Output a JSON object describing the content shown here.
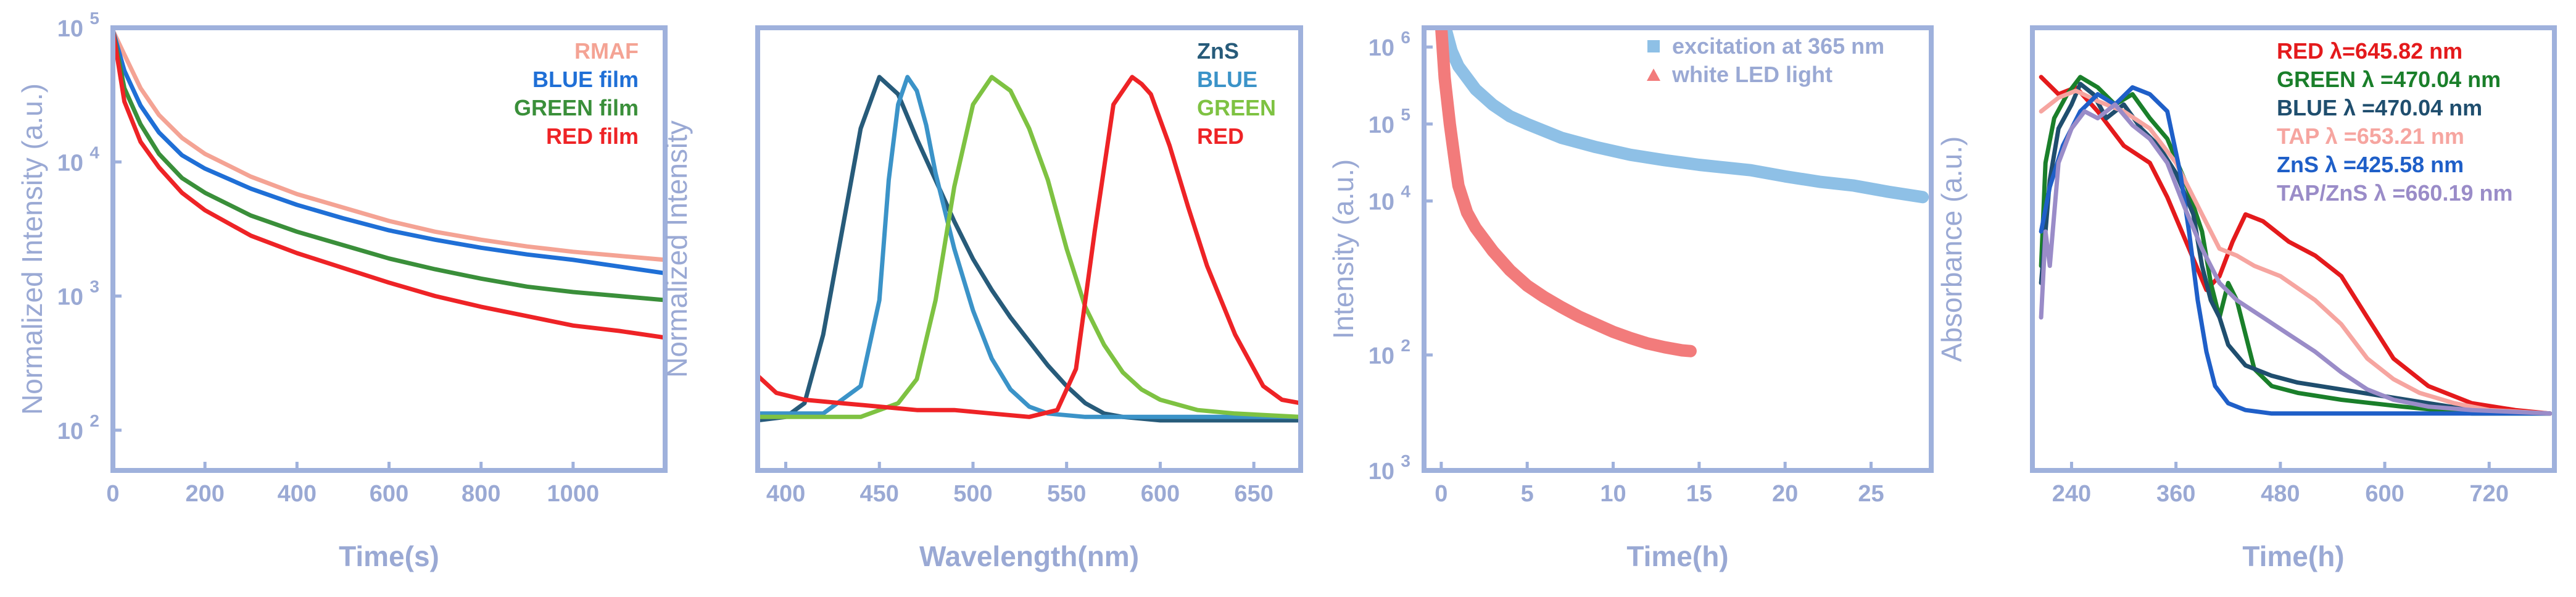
{
  "chart_data": [
    {
      "type": "line",
      "title": "",
      "xlabel": "Time(s)",
      "ylabel": "Normalized Intensity (a.u.)",
      "xlim": [
        0,
        1200
      ],
      "ylim_log10": [
        1.7,
        5.0
      ],
      "yscale": "log",
      "xticks": [
        0,
        200,
        400,
        600,
        800,
        1000
      ],
      "yticks": [
        {
          "value": 2,
          "base": "10",
          "exp": "2"
        },
        {
          "value": 3,
          "base": "10",
          "exp": "3"
        },
        {
          "value": 4,
          "base": "10",
          "exp": "4"
        },
        {
          "value": 5,
          "base": "10",
          "exp": "5"
        }
      ],
      "legend_position": "top-right",
      "series": [
        {
          "name": "RMAF",
          "color": "#f4a394",
          "x": [
            0,
            25,
            60,
            100,
            150,
            200,
            300,
            400,
            500,
            600,
            700,
            800,
            900,
            1000,
            1100,
            1200
          ],
          "y_log10": [
            4.98,
            4.8,
            4.55,
            4.35,
            4.18,
            4.06,
            3.89,
            3.76,
            3.66,
            3.56,
            3.48,
            3.42,
            3.37,
            3.33,
            3.3,
            3.27
          ]
        },
        {
          "name": "BLUE film",
          "color": "#1f6fd6",
          "x": [
            0,
            25,
            60,
            100,
            150,
            200,
            300,
            400,
            500,
            600,
            700,
            800,
            900,
            1000,
            1100,
            1200
          ],
          "y_log10": [
            4.98,
            4.68,
            4.42,
            4.22,
            4.05,
            3.95,
            3.8,
            3.68,
            3.58,
            3.49,
            3.42,
            3.36,
            3.31,
            3.27,
            3.22,
            3.17
          ]
        },
        {
          "name": "GREEN film",
          "color": "#3a8f3a",
          "x": [
            0,
            25,
            60,
            100,
            150,
            200,
            300,
            400,
            500,
            600,
            700,
            800,
            900,
            1000,
            1100,
            1200
          ],
          "y_log10": [
            4.98,
            4.55,
            4.28,
            4.06,
            3.88,
            3.77,
            3.6,
            3.48,
            3.38,
            3.28,
            3.2,
            3.13,
            3.07,
            3.03,
            3.0,
            2.97
          ]
        },
        {
          "name": "RED film",
          "color": "#ee2326",
          "x": [
            0,
            25,
            60,
            100,
            150,
            200,
            300,
            400,
            500,
            600,
            700,
            800,
            900,
            1000,
            1100,
            1200
          ],
          "y_log10": [
            4.98,
            4.45,
            4.15,
            3.96,
            3.77,
            3.64,
            3.45,
            3.32,
            3.21,
            3.1,
            3.0,
            2.92,
            2.85,
            2.78,
            2.74,
            2.69
          ]
        }
      ]
    },
    {
      "type": "line",
      "title": "",
      "xlabel": "Wavelength(nm)",
      "ylabel": "Normalized Intensity",
      "xlim": [
        385,
        675
      ],
      "ylim": [
        -0.02,
        1.05
      ],
      "xticks": [
        400,
        450,
        500,
        550,
        600,
        650
      ],
      "legend_position": "top-right",
      "series": [
        {
          "name": "ZnS",
          "color": "#275b7a",
          "x": [
            385,
            400,
            410,
            420,
            430,
            440,
            450,
            460,
            470,
            480,
            490,
            500,
            510,
            520,
            530,
            540,
            550,
            560,
            570,
            580,
            600,
            640,
            675
          ],
          "y": [
            0.0,
            0.01,
            0.05,
            0.25,
            0.55,
            0.85,
            1.0,
            0.95,
            0.82,
            0.7,
            0.58,
            0.47,
            0.38,
            0.3,
            0.23,
            0.16,
            0.1,
            0.05,
            0.02,
            0.01,
            0.0,
            0.0,
            0.0
          ]
        },
        {
          "name": "BLUE",
          "color": "#3b93c8",
          "x": [
            385,
            420,
            440,
            450,
            455,
            460,
            465,
            470,
            475,
            480,
            490,
            500,
            510,
            520,
            530,
            540,
            560,
            580,
            620,
            675
          ],
          "y": [
            0.02,
            0.02,
            0.1,
            0.35,
            0.7,
            0.92,
            1.0,
            0.96,
            0.86,
            0.72,
            0.5,
            0.32,
            0.18,
            0.09,
            0.04,
            0.02,
            0.01,
            0.01,
            0.01,
            0.01
          ]
        },
        {
          "name": "GREEN",
          "color": "#7ec242",
          "x": [
            385,
            440,
            460,
            470,
            480,
            490,
            500,
            510,
            520,
            530,
            540,
            550,
            560,
            570,
            580,
            590,
            600,
            620,
            640,
            675
          ],
          "y": [
            0.01,
            0.01,
            0.05,
            0.12,
            0.35,
            0.68,
            0.92,
            1.0,
            0.96,
            0.85,
            0.7,
            0.5,
            0.33,
            0.22,
            0.14,
            0.09,
            0.06,
            0.03,
            0.02,
            0.01
          ]
        },
        {
          "name": "RED",
          "color": "#ee2326",
          "x": [
            385,
            395,
            410,
            430,
            450,
            470,
            490,
            510,
            530,
            545,
            555,
            565,
            575,
            585,
            590,
            595,
            605,
            615,
            625,
            640,
            655,
            665,
            675
          ],
          "y": [
            0.13,
            0.08,
            0.06,
            0.05,
            0.04,
            0.03,
            0.03,
            0.02,
            0.01,
            0.03,
            0.15,
            0.55,
            0.92,
            1.0,
            0.98,
            0.95,
            0.8,
            0.62,
            0.45,
            0.25,
            0.1,
            0.06,
            0.05
          ]
        }
      ]
    },
    {
      "type": "line",
      "title": "",
      "xlabel": "Time(h)",
      "ylabel": "Intensity (a.u.)",
      "xlim": [
        -1,
        28.5
      ],
      "ylim_log10": [
        0.5,
        6.25
      ],
      "yscale": "log",
      "xticks": [
        0,
        5,
        10,
        15,
        20,
        25
      ],
      "yticks": [
        {
          "value": 2,
          "base": "10",
          "exp": "2"
        },
        {
          "value": 4,
          "base": "10",
          "exp": "4"
        },
        {
          "value": 5,
          "base": "10",
          "exp": "5"
        },
        {
          "value": 6,
          "base": "10",
          "exp": "6"
        },
        {
          "value": 0.5,
          "base": "10",
          "exp": "3"
        }
      ],
      "legend_position": "top-right",
      "series": [
        {
          "name": "excitation at 365 nm",
          "marker": "square",
          "color": "#8ec0e6",
          "x": [
            0.3,
            0.6,
            1.0,
            2.0,
            3.0,
            4.0,
            5.0,
            7.0,
            9.0,
            11.0,
            13.0,
            15.0,
            18.0,
            20.0,
            22.0,
            24.0,
            26.0,
            28.0
          ],
          "y_log10": [
            6.2,
            5.95,
            5.75,
            5.45,
            5.25,
            5.1,
            5.0,
            4.82,
            4.7,
            4.6,
            4.53,
            4.47,
            4.4,
            4.32,
            4.25,
            4.2,
            4.12,
            4.05
          ]
        },
        {
          "name": "white LED light",
          "marker": "triangle",
          "color": "#f27b7b",
          "x": [
            0.0,
            0.2,
            0.5,
            0.8,
            1.0,
            1.5,
            2.0,
            3.0,
            4.0,
            5.0,
            6.0,
            7.0,
            8.0,
            9.0,
            10.0,
            11.0,
            12.0,
            13.0,
            14.0,
            14.5
          ],
          "y_log10": [
            6.25,
            5.6,
            5.0,
            4.5,
            4.2,
            3.85,
            3.65,
            3.35,
            3.1,
            2.9,
            2.75,
            2.62,
            2.5,
            2.4,
            2.3,
            2.22,
            2.15,
            2.1,
            2.06,
            2.05
          ]
        }
      ]
    },
    {
      "type": "line",
      "title": "",
      "xlabel": "Time(h)",
      "ylabel": "Absorbance (a.u.)",
      "xlim": [
        195,
        795
      ],
      "ylim": [
        -0.02,
        1.05
      ],
      "xticks": [
        240,
        360,
        480,
        600,
        720
      ],
      "legend_position": "top-right",
      "series": [
        {
          "name": "RED λ=645.82 nm",
          "color": "#e41a1c",
          "x": [
            205,
            225,
            245,
            270,
            300,
            330,
            350,
            375,
            395,
            410,
            425,
            440,
            460,
            490,
            520,
            550,
            580,
            610,
            650,
            700,
            750,
            790
          ],
          "y": [
            1.0,
            0.95,
            0.97,
            0.9,
            0.8,
            0.75,
            0.65,
            0.5,
            0.38,
            0.42,
            0.52,
            0.6,
            0.58,
            0.52,
            0.48,
            0.42,
            0.3,
            0.18,
            0.1,
            0.05,
            0.03,
            0.02
          ]
        },
        {
          "name": "GREEN λ =470.04 nm",
          "color": "#1a7f2a",
          "x": [
            205,
            210,
            220,
            235,
            250,
            270,
            290,
            310,
            330,
            350,
            370,
            390,
            400,
            410,
            420,
            430,
            440,
            450,
            470,
            500,
            550,
            620,
            700,
            790
          ],
          "y": [
            0.45,
            0.75,
            0.88,
            0.95,
            1.0,
            0.97,
            0.92,
            0.95,
            0.88,
            0.82,
            0.7,
            0.55,
            0.4,
            0.3,
            0.4,
            0.35,
            0.25,
            0.15,
            0.1,
            0.08,
            0.06,
            0.04,
            0.02,
            0.02
          ]
        },
        {
          "name": "BLUE λ =470.04 nm",
          "color": "#1f4e6e",
          "x": [
            205,
            215,
            225,
            240,
            250,
            265,
            280,
            300,
            320,
            340,
            360,
            380,
            390,
            400,
            410,
            420,
            440,
            470,
            500,
            550,
            600,
            650,
            700,
            790
          ],
          "y": [
            0.4,
            0.7,
            0.85,
            0.92,
            0.98,
            0.95,
            0.88,
            0.92,
            0.85,
            0.8,
            0.72,
            0.6,
            0.45,
            0.35,
            0.3,
            0.22,
            0.16,
            0.13,
            0.11,
            0.09,
            0.07,
            0.05,
            0.03,
            0.02
          ]
        },
        {
          "name": "TAP λ =653.21 nm",
          "color": "#f6a5a0",
          "x": [
            205,
            225,
            245,
            270,
            300,
            330,
            360,
            390,
            410,
            430,
            450,
            480,
            520,
            550,
            580,
            610,
            640,
            680,
            720,
            790
          ],
          "y": [
            0.9,
            0.94,
            0.96,
            0.93,
            0.9,
            0.85,
            0.75,
            0.6,
            0.5,
            0.48,
            0.45,
            0.42,
            0.35,
            0.28,
            0.18,
            0.12,
            0.08,
            0.05,
            0.03,
            0.02
          ]
        },
        {
          "name": "ZnS λ =425.58 nm",
          "color": "#1f5fc8",
          "x": [
            205,
            215,
            230,
            250,
            270,
            290,
            310,
            330,
            350,
            365,
            375,
            385,
            395,
            405,
            420,
            440,
            470,
            500,
            550,
            620,
            700,
            790
          ],
          "y": [
            0.55,
            0.68,
            0.8,
            0.9,
            0.95,
            0.92,
            0.97,
            0.95,
            0.9,
            0.72,
            0.55,
            0.35,
            0.2,
            0.1,
            0.05,
            0.03,
            0.02,
            0.02,
            0.02,
            0.02,
            0.02,
            0.02
          ]
        },
        {
          "name": "TAP/ZnS λ =660.19 nm",
          "color": "#9a8cc8",
          "x": [
            205,
            210,
            215,
            225,
            240,
            255,
            270,
            290,
            310,
            330,
            350,
            370,
            390,
            410,
            430,
            460,
            490,
            520,
            550,
            580,
            610,
            650,
            700,
            790
          ],
          "y": [
            0.3,
            0.55,
            0.45,
            0.75,
            0.85,
            0.9,
            0.88,
            0.92,
            0.86,
            0.82,
            0.75,
            0.62,
            0.5,
            0.4,
            0.35,
            0.3,
            0.25,
            0.2,
            0.14,
            0.09,
            0.06,
            0.04,
            0.03,
            0.02
          ]
        }
      ]
    }
  ]
}
